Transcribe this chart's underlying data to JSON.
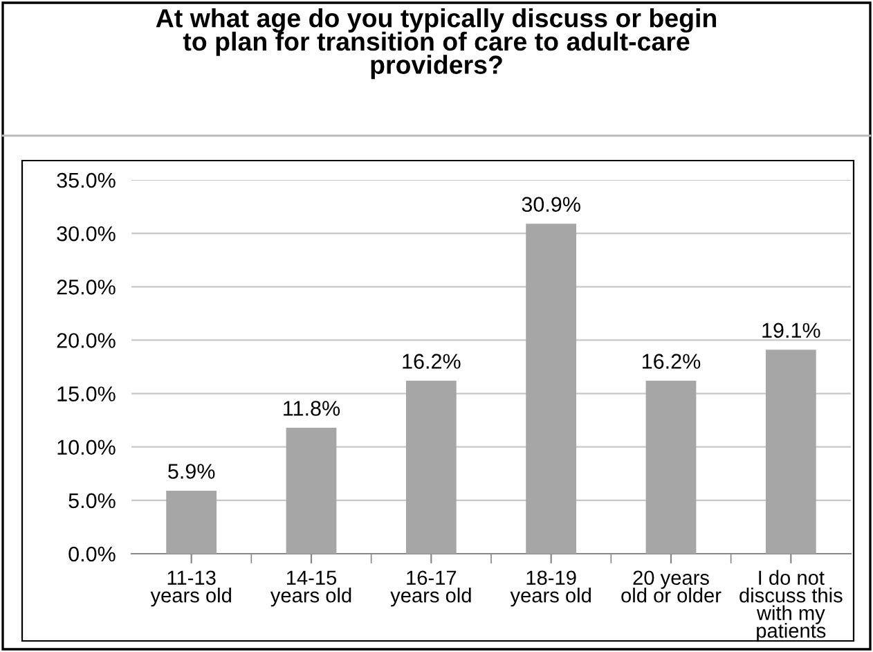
{
  "chart_data": {
    "type": "bar",
    "title": "At what age do you typically discuss or begin\nto plan for transition of care to adult-care\nproviders?",
    "categories": [
      "11-13\nyears old",
      "14-15\nyears old",
      "16-17\nyears old",
      "18-19\nyears old",
      "20 years\nold or older",
      "I do not\ndiscuss this\nwith my\npatients"
    ],
    "values": [
      5.9,
      11.8,
      16.2,
      30.9,
      16.2,
      19.1
    ],
    "value_labels": [
      "5.9%",
      "11.8%",
      "16.2%",
      "30.9%",
      "16.2%",
      "19.1%"
    ],
    "color": "#a6a6a6",
    "ylim": [
      0,
      35
    ],
    "yticks": [
      {
        "value": 0,
        "label": "0.0%"
      },
      {
        "value": 5,
        "label": "5.0%"
      },
      {
        "value": 10,
        "label": "10.0%"
      },
      {
        "value": 15,
        "label": "15.0%"
      },
      {
        "value": 20,
        "label": "20.0%"
      },
      {
        "value": 25,
        "label": "25.0%"
      },
      {
        "value": 30,
        "label": "30.0%"
      },
      {
        "value": 35,
        "label": "35.0%"
      }
    ],
    "grid": "y"
  }
}
